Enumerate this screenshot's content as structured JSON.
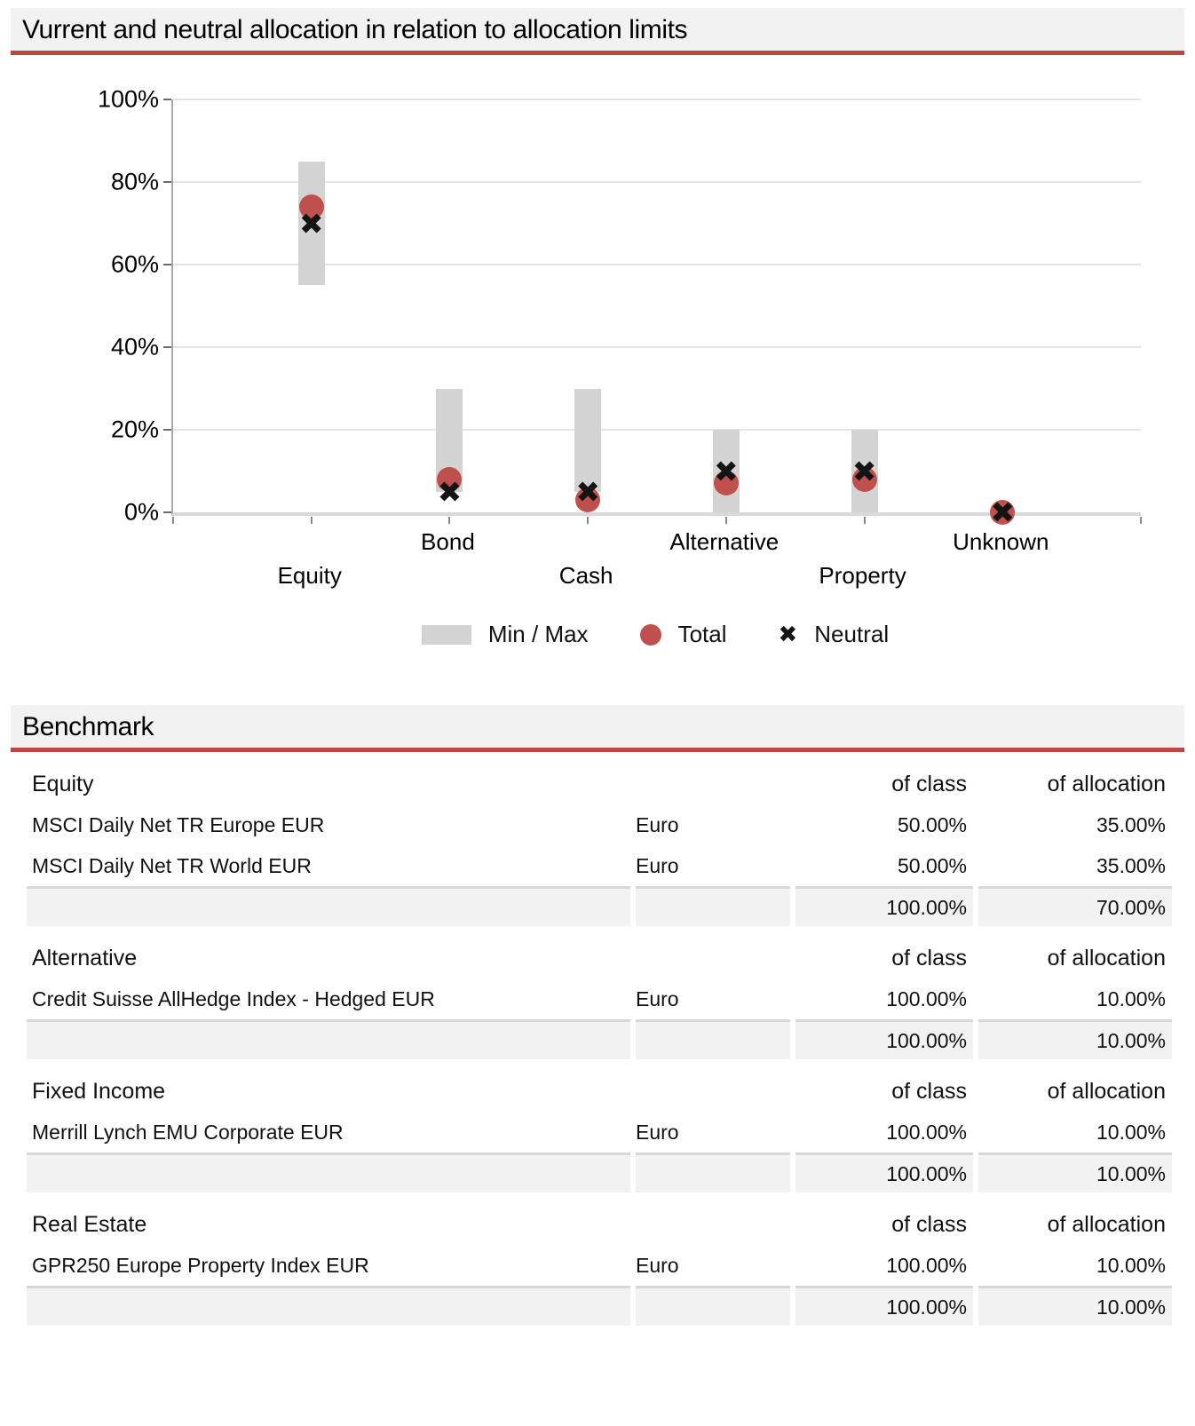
{
  "page": {
    "chart_section": {
      "title": "Vurrent and neutral allocation in relation to allocation limits"
    },
    "benchmark_section": {
      "title": "Benchmark",
      "col_headers": {
        "of_class": "of class",
        "of_allocation": "of allocation"
      },
      "groups": [
        {
          "name": "Equity",
          "rows": [
            {
              "index_name": "MSCI Daily Net TR Europe EUR",
              "currency": "Euro",
              "of_class": "50.00%",
              "of_allocation": "35.00%"
            },
            {
              "index_name": "MSCI Daily Net TR World EUR",
              "currency": "Euro",
              "of_class": "50.00%",
              "of_allocation": "35.00%"
            }
          ],
          "total": {
            "of_class": "100.00%",
            "of_allocation": "70.00%"
          }
        },
        {
          "name": "Alternative",
          "rows": [
            {
              "index_name": "Credit Suisse AllHedge Index - Hedged EUR",
              "currency": "Euro",
              "of_class": "100.00%",
              "of_allocation": "10.00%"
            }
          ],
          "total": {
            "of_class": "100.00%",
            "of_allocation": "10.00%"
          }
        },
        {
          "name": "Fixed Income",
          "rows": [
            {
              "index_name": "Merrill Lynch EMU Corporate EUR",
              "currency": "Euro",
              "of_class": "100.00%",
              "of_allocation": "10.00%"
            }
          ],
          "total": {
            "of_class": "100.00%",
            "of_allocation": "10.00%"
          }
        },
        {
          "name": "Real Estate",
          "rows": [
            {
              "index_name": "GPR250 Europe Property Index EUR",
              "currency": "Euro",
              "of_class": "100.00%",
              "of_allocation": "10.00%"
            }
          ],
          "total": {
            "of_class": "100.00%",
            "of_allocation": "10.00%"
          }
        }
      ]
    },
    "colors": {
      "accent_red": "#b94743",
      "total_dot_red": "#c0504d",
      "minmax_bar_gray": "#d3d3d3",
      "section_bar_bg": "#f2f2f2",
      "total_row_bg": "#f2f2f2",
      "gridline_gray": "#e4e4e4"
    }
  },
  "chart_data": {
    "type": "scatter",
    "title": "Vurrent and neutral allocation in relation to allocation limits",
    "categories": [
      "Equity",
      "Bond",
      "Cash",
      "Alternative",
      "Property",
      "Unknown"
    ],
    "series": [
      {
        "name": "Min / Max",
        "type": "range_bar",
        "color": "#d3d3d3",
        "min": [
          55,
          5,
          5,
          0,
          0,
          null
        ],
        "max": [
          85,
          30,
          30,
          20,
          20,
          null
        ]
      },
      {
        "name": "Total",
        "type": "point",
        "marker": "circle",
        "color": "#c0504d",
        "values": [
          74,
          8,
          3,
          7,
          8,
          0
        ]
      },
      {
        "name": "Neutral",
        "type": "point",
        "marker": "x",
        "color": "#141414",
        "values": [
          70,
          5,
          5,
          10,
          10,
          0
        ]
      }
    ],
    "xlabel": "",
    "ylabel": "",
    "ylim": [
      0,
      100
    ],
    "yticks": [
      "0%",
      "20%",
      "40%",
      "60%",
      "80%",
      "100%"
    ],
    "grid": true,
    "legend_position": "bottom",
    "legend": [
      "Min / Max",
      "Total",
      "Neutral"
    ]
  }
}
